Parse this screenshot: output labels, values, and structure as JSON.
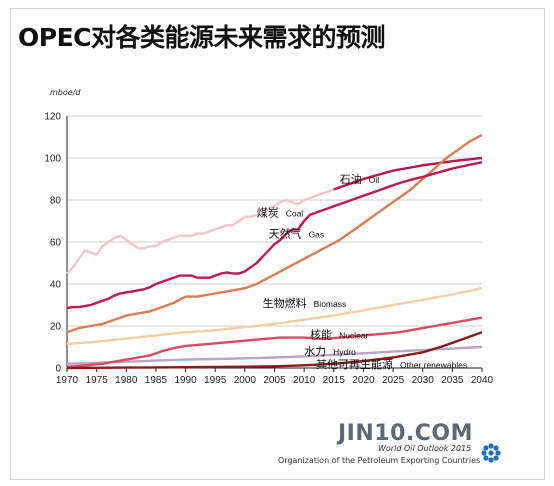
{
  "header": {
    "title": "OPEC对各类能源未来需求的预测",
    "unit": "mboe/d"
  },
  "footer": {
    "watermark": "JIN10.COM",
    "source_line1": "World Oil Outlook 2015",
    "source_line2": "Organization of the Petroleum Exporting Countries"
  },
  "colors": {
    "oil_hist": "#f2c4cc",
    "oil_proj": "#b8174a",
    "coal": "#c4184e",
    "gas": "#e07a53",
    "biomass": "#f6cfa0",
    "nuclear": "#d94a63",
    "hydro": "#b7a6c8",
    "other": "#8a1b1b",
    "grid": "#bfbfbf",
    "axis": "#222222",
    "logo": "#1f6fb8"
  },
  "chart_data": {
    "type": "line",
    "xlabel": "",
    "ylabel": "",
    "xlim": [
      1970,
      2040
    ],
    "ylim": [
      0,
      120
    ],
    "x_ticks": [
      1970,
      1975,
      1980,
      1985,
      1990,
      1995,
      2000,
      2005,
      2010,
      2015,
      2020,
      2025,
      2030,
      2035,
      2040
    ],
    "y_ticks": [
      0,
      20,
      40,
      60,
      80,
      100,
      120
    ],
    "grid": "horizontal",
    "series": [
      {
        "key": "oil",
        "name": "石油 Oil",
        "label_zh": "石油",
        "label_en": "Oil",
        "label_at": [
          2016,
          90
        ],
        "x": [
          1970,
          1971,
          1972,
          1973,
          1974,
          1975,
          1976,
          1977,
          1978,
          1979,
          1980,
          1981,
          1982,
          1983,
          1984,
          1985,
          1986,
          1987,
          1988,
          1989,
          1990,
          1991,
          1992,
          1993,
          1994,
          1995,
          1996,
          1997,
          1998,
          1999,
          2000,
          2001,
          2002,
          2003,
          2004,
          2005,
          2006,
          2007,
          2008,
          2009,
          2010,
          2011,
          2012,
          2013,
          2014,
          2015,
          2016,
          2017,
          2018,
          2019,
          2020,
          2021,
          2022,
          2023,
          2024,
          2025,
          2026,
          2027,
          2028,
          2029,
          2030,
          2031,
          2032,
          2033,
          2034,
          2035,
          2036,
          2037,
          2038,
          2039,
          2040
        ],
        "y": [
          45,
          48,
          52,
          56,
          55,
          54,
          58,
          60,
          62,
          63,
          61,
          59,
          57,
          57,
          58,
          58,
          60,
          61,
          62,
          63,
          63,
          63,
          64,
          64,
          65,
          66,
          67,
          68,
          68,
          70,
          72,
          72,
          73,
          74,
          76,
          77,
          79,
          80,
          79,
          78,
          80,
          81,
          82,
          83,
          84,
          85,
          86,
          87,
          88,
          89,
          90,
          90.8,
          91.6,
          92.4,
          93.2,
          94,
          94.5,
          95,
          95.5,
          96,
          96.5,
          96.9,
          97.3,
          97.7,
          98.1,
          98.5,
          98.8,
          99.1,
          99.4,
          99.7,
          100
        ]
      },
      {
        "key": "coal",
        "name": "煤炭 Coal",
        "label_zh": "煤炭",
        "label_en": "Coal",
        "label_at": [
          2002,
          74
        ],
        "x": [
          1970,
          1971,
          1972,
          1973,
          1974,
          1975,
          1976,
          1977,
          1978,
          1979,
          1980,
          1981,
          1982,
          1983,
          1984,
          1985,
          1986,
          1987,
          1988,
          1989,
          1990,
          1991,
          1992,
          1993,
          1994,
          1995,
          1996,
          1997,
          1998,
          1999,
          2000,
          2001,
          2002,
          2003,
          2004,
          2005,
          2006,
          2007,
          2008,
          2009,
          2010,
          2011,
          2012,
          2013,
          2014,
          2015,
          2016,
          2017,
          2018,
          2019,
          2020,
          2021,
          2022,
          2023,
          2024,
          2025,
          2026,
          2027,
          2028,
          2029,
          2030,
          2031,
          2032,
          2033,
          2034,
          2035,
          2036,
          2037,
          2038,
          2039,
          2040
        ],
        "y": [
          28.5,
          29,
          29,
          29.5,
          30,
          31,
          32,
          33,
          34.5,
          35.5,
          36,
          36.5,
          37,
          37.5,
          38.5,
          40,
          41,
          42,
          43,
          44,
          44,
          44,
          43,
          43,
          43,
          44,
          45,
          45.5,
          45,
          45,
          46,
          48,
          50,
          53,
          56,
          59,
          61,
          64,
          66,
          66,
          70,
          73,
          74,
          75,
          76,
          77,
          78,
          79,
          80,
          81,
          82,
          83,
          84,
          85,
          86,
          87,
          88,
          88.8,
          89.6,
          90.4,
          91,
          91.8,
          92.6,
          93.4,
          94.2,
          95,
          95.6,
          96.2,
          96.8,
          97.4,
          98
        ]
      },
      {
        "key": "gas",
        "name": "天然气 Gas",
        "label_zh": "天然气",
        "label_en": "Gas",
        "label_at": [
          2004,
          64
        ],
        "x": [
          1970,
          1972,
          1974,
          1976,
          1978,
          1980,
          1982,
          1984,
          1986,
          1988,
          1990,
          1992,
          1994,
          1996,
          1998,
          2000,
          2002,
          2004,
          2006,
          2008,
          2010,
          2012,
          2014,
          2016,
          2018,
          2020,
          2022,
          2024,
          2026,
          2028,
          2030,
          2032,
          2034,
          2036,
          2038,
          2040
        ],
        "y": [
          17,
          19,
          20,
          21,
          23,
          25,
          26,
          27,
          29,
          31,
          34,
          34,
          35,
          36,
          37,
          38,
          40,
          43,
          46,
          49,
          52,
          55,
          58,
          61,
          65,
          69,
          73,
          77,
          81,
          85,
          90,
          95,
          100,
          104,
          108,
          111
        ]
      },
      {
        "key": "biomass",
        "name": "生物燃料 Biomass",
        "label_zh": "生物燃料",
        "label_en": "Biomass",
        "label_at": [
          2003,
          31
        ],
        "x": [
          1970,
          1975,
          1980,
          1985,
          1990,
          1995,
          2000,
          2005,
          2010,
          2015,
          2020,
          2025,
          2030,
          2035,
          2040
        ],
        "y": [
          11.5,
          12.5,
          14,
          15.5,
          17,
          18,
          19.5,
          21,
          23,
          25,
          27.5,
          30,
          32.5,
          35,
          38
        ]
      },
      {
        "key": "nuclear",
        "name": "核能 Nuclear",
        "label_zh": "核能",
        "label_en": "Nuclear",
        "label_at": [
          2011,
          16
        ],
        "x": [
          1970,
          1972,
          1974,
          1976,
          1978,
          1980,
          1982,
          1984,
          1986,
          1988,
          1990,
          1992,
          1994,
          1996,
          1998,
          2000,
          2002,
          2004,
          2006,
          2008,
          2010,
          2012,
          2014,
          2016,
          2018,
          2020,
          2022,
          2024,
          2026,
          2028,
          2030,
          2032,
          2034,
          2036,
          2038,
          2040
        ],
        "y": [
          0.5,
          1,
          1.5,
          2,
          3,
          4,
          5,
          6,
          8,
          9.5,
          10.5,
          11,
          11.5,
          12,
          12.5,
          13,
          13.5,
          14,
          14.5,
          14.5,
          14.5,
          14,
          14,
          14.5,
          15,
          15.5,
          16,
          16.5,
          17,
          18,
          19,
          20,
          21,
          22,
          23,
          24
        ]
      },
      {
        "key": "hydro",
        "name": "水力 Hydro",
        "label_zh": "水力",
        "label_en": "Hydro",
        "label_at": [
          2010,
          8
        ],
        "x": [
          1970,
          1975,
          1980,
          1985,
          1990,
          1995,
          2000,
          2005,
          2010,
          2015,
          2020,
          2025,
          2030,
          2035,
          2040
        ],
        "y": [
          2,
          2.5,
          3,
          3.5,
          4,
          4.3,
          4.6,
          5,
          5.5,
          6.3,
          7,
          7.8,
          8.5,
          9.3,
          10
        ]
      },
      {
        "key": "other",
        "name": "其他可再生能源 Other renewables",
        "label_zh": "其他可再生能源",
        "label_en": "Other renewables",
        "label_at": [
          2012,
          2
        ],
        "x": [
          1970,
          1975,
          1980,
          1985,
          1990,
          1995,
          2000,
          2005,
          2010,
          2015,
          2020,
          2025,
          2030,
          2033,
          2036,
          2040
        ],
        "y": [
          0,
          0.1,
          0.2,
          0.3,
          0.4,
          0.5,
          0.6,
          0.8,
          1.3,
          2,
          3.3,
          5,
          7.5,
          10,
          13,
          17
        ]
      }
    ]
  }
}
